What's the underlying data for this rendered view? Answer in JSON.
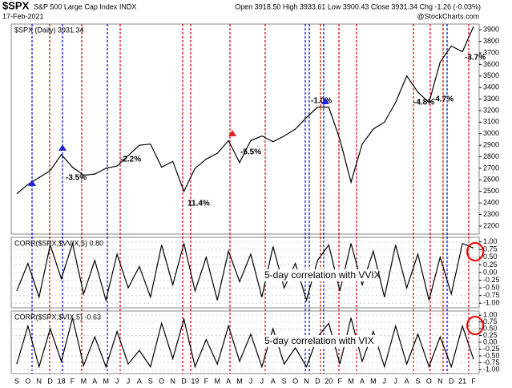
{
  "chart_data": [
    {
      "type": "line",
      "title": "$SPX",
      "subtitle": "S&P 500 Large Cap Index INDX",
      "date": "17-Feb-2021",
      "quote": "Open 3918.50  High 3933.61  Low 3900.43  Close 3931.34  Chg -1.26 (-0.03%)",
      "source": "@StockCharts.com",
      "series": [
        {
          "name": "$SPX (Daily) 3931.34",
          "color": "#000000",
          "values": [
            2480,
            2560,
            2620,
            2680,
            2820,
            2710,
            2640,
            2650,
            2700,
            2720,
            2810,
            2900,
            2910,
            2710,
            2760,
            2500,
            2700,
            2780,
            2830,
            2940,
            2750,
            2940,
            2980,
            2930,
            2980,
            3040,
            3140,
            3230,
            3230,
            2950,
            2580,
            2910,
            3040,
            3100,
            3270,
            3500,
            3360,
            3270,
            3620,
            3760,
            3710,
            3930
          ]
        }
      ],
      "ylim": [
        2130,
        3950
      ],
      "yticks": [
        2200,
        2300,
        2400,
        2500,
        2600,
        2700,
        2800,
        2900,
        3000,
        3100,
        3200,
        3300,
        3400,
        3500,
        3600,
        3700,
        3800,
        3900
      ],
      "annotations": [
        "-3.5%",
        "-2.2%",
        "11.4%",
        "-5.5%",
        "-1.0%",
        "-4.8%",
        "-4.7%",
        "-3.7%"
      ]
    },
    {
      "type": "line",
      "series": [
        {
          "name": "CORR($SPX,$VVIX,5) 0.80",
          "color": "#000000",
          "values": [
            -0.6,
            0.3,
            -0.8,
            0.9,
            -0.2,
            0.95,
            -0.7,
            0.4,
            -0.9,
            0.6,
            -0.5,
            0.2,
            -0.8,
            0.9,
            -0.4,
            0.95,
            -0.6,
            0.5,
            -0.9,
            0.7,
            -0.3,
            0.6,
            -0.8,
            0.85,
            -0.5,
            0.3,
            -0.9,
            0.4,
            0.9,
            -0.6,
            0.95,
            -0.4,
            0.7,
            -0.8,
            0.9,
            -0.5,
            0.6,
            -0.9,
            0.5,
            -0.7,
            0.95,
            0.8
          ]
        }
      ],
      "annotation": "5-day correlation with VVIX",
      "ylim": [
        -1.15,
        1.15
      ],
      "yticks": [
        {
          "value": 1,
          "label": "1.00"
        },
        0.75,
        {
          "value": 0.5,
          "label": "0.50"
        },
        0.25,
        {
          "value": 0,
          "label": "0.00"
        },
        -0.25,
        {
          "value": -0.5,
          "label": "-0.50"
        },
        -0.75,
        {
          "value": -1,
          "label": "-1.00"
        }
      ]
    },
    {
      "type": "line",
      "series": [
        {
          "name": "CORR($SPX,$VIX,5) -0.63",
          "color": "#000000",
          "values": [
            -0.8,
            0.6,
            -0.9,
            0.5,
            -0.7,
            0.9,
            -0.85,
            0.2,
            -0.9,
            0.4,
            -0.8,
            -0.3,
            -0.9,
            0.7,
            -0.6,
            0.85,
            -0.9,
            0.1,
            -0.8,
            0.6,
            -0.7,
            0.3,
            -0.9,
            0.5,
            -0.8,
            -0.2,
            -0.9,
            0.2,
            0.7,
            -0.8,
            0.9,
            -0.7,
            0.4,
            -0.9,
            0.6,
            -0.8,
            0.3,
            -0.9,
            0.2,
            -0.9,
            0.6,
            -0.63
          ]
        }
      ],
      "annotation": "5-day correlation with VIX",
      "ylim": [
        -1.15,
        1.15
      ],
      "yticks": [
        {
          "value": 1,
          "label": "1.00"
        },
        0.75,
        {
          "value": 0.5,
          "label": "0.50"
        },
        0.25,
        {
          "value": 0,
          "label": "0.00"
        },
        -0.25,
        {
          "value": -0.5,
          "label": "-0.50"
        },
        -0.75,
        {
          "value": -1,
          "label": "-1.00"
        }
      ],
      "categories": [
        "S",
        "O",
        "N",
        "D",
        "18",
        "F",
        "M",
        "A",
        "M",
        "J",
        "J",
        "A",
        "S",
        "O",
        "N",
        "D",
        "19",
        "F",
        "M",
        "A",
        "M",
        "J",
        "J",
        "A",
        "S",
        "O",
        "N",
        "D",
        "20",
        "F",
        "M",
        "A",
        "M",
        "J",
        "J",
        "A",
        "S",
        "O",
        "N",
        "D",
        "21",
        "F"
      ]
    }
  ]
}
